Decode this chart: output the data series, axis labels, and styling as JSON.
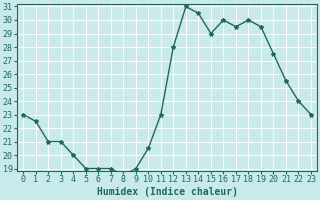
{
  "x": [
    0,
    1,
    2,
    3,
    4,
    5,
    6,
    7,
    8,
    9,
    10,
    11,
    12,
    13,
    14,
    15,
    16,
    17,
    18,
    19,
    20,
    21,
    22,
    23
  ],
  "y": [
    23,
    22.5,
    21,
    21,
    20,
    19,
    19,
    19,
    18.5,
    19,
    20.5,
    23,
    28,
    31,
    30.5,
    29,
    30,
    29.5,
    30,
    29.5,
    27.5,
    25.5,
    24,
    23
  ],
  "xlabel": "Humidex (Indice chaleur)",
  "ylim_min": 19,
  "ylim_max": 31,
  "xlim_min": 0,
  "xlim_max": 23,
  "yticks": [
    19,
    20,
    21,
    22,
    23,
    24,
    25,
    26,
    27,
    28,
    29,
    30,
    31
  ],
  "xticks": [
    0,
    1,
    2,
    3,
    4,
    5,
    6,
    7,
    8,
    9,
    10,
    11,
    12,
    13,
    14,
    15,
    16,
    17,
    18,
    19,
    20,
    21,
    22,
    23
  ],
  "line_color": "#1a6b5a",
  "marker": "*",
  "bg_color": "#c8eaea",
  "grid_color": "#ffffff",
  "tick_color": "#1a6b5a",
  "xlabel_color": "#1a6b5a",
  "xlabel_fontsize": 7,
  "tick_fontsize": 6,
  "linewidth": 1.0,
  "markersize": 3
}
